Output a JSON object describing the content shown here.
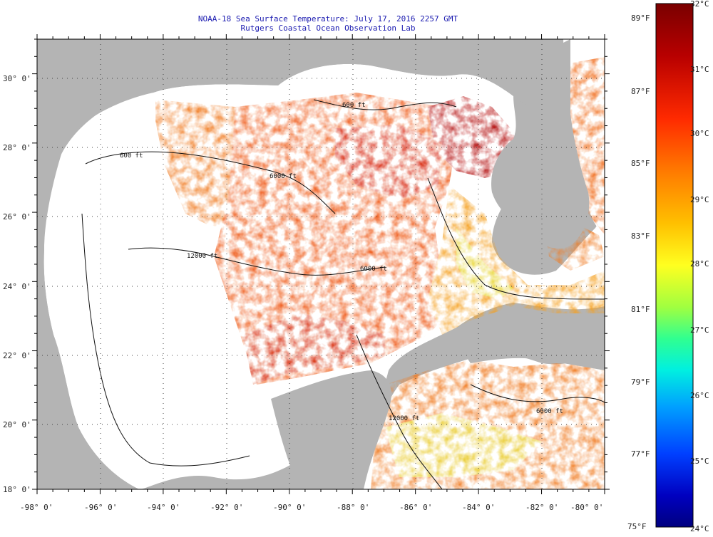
{
  "header": {
    "title": "NOAA-18 Sea Surface Temperature:  July 17, 2016 2257 GMT",
    "subtitle": "Rutgers Coastal Ocean Observation Lab"
  },
  "map": {
    "lon_range": [
      -98,
      -80
    ],
    "lat_range": [
      18,
      31
    ],
    "lon_ticks": [
      "-98° 0'",
      "-96° 0'",
      "-94° 0'",
      "-92° 0'",
      "-90° 0'",
      "-88° 0'",
      "-86° 0'",
      "-84° 0'",
      "-82° 0'",
      "-80° 0'"
    ],
    "lat_ticks": [
      "18° 0'",
      "20° 0'",
      "22° 0'",
      "24° 0'",
      "26° 0'",
      "28° 0'",
      "30° 0'"
    ],
    "contour_labels": [
      "600 ft",
      "12000 ft",
      "6000 ft",
      "600 ft",
      "6000 ft",
      "12000 ft",
      "6000 ft"
    ],
    "colors": {
      "land": "#b4b4b4",
      "no_data": "#ffffff",
      "warm": "#e23b10",
      "hot": "#b00a0a",
      "mid": "#f58a1a",
      "cool": "#e8e020",
      "cold": "#2a60d0"
    }
  },
  "legend": {
    "celsius_labels": [
      "32°C",
      "31°C",
      "30°C",
      "29°C",
      "28°C",
      "27°C",
      "26°C",
      "25°C",
      "24°C"
    ],
    "fahrenheit_labels": [
      "89°F",
      "87°F",
      "85°F",
      "83°F",
      "81°F",
      "79°F",
      "77°F",
      "75°F"
    ],
    "colormap": [
      "#800000",
      "#c00000",
      "#ff2000",
      "#ff7000",
      "#ffb000",
      "#ffff00",
      "#80ff40",
      "#00ffc0",
      "#00c0ff",
      "#0060ff",
      "#0000d0",
      "#000080"
    ]
  }
}
